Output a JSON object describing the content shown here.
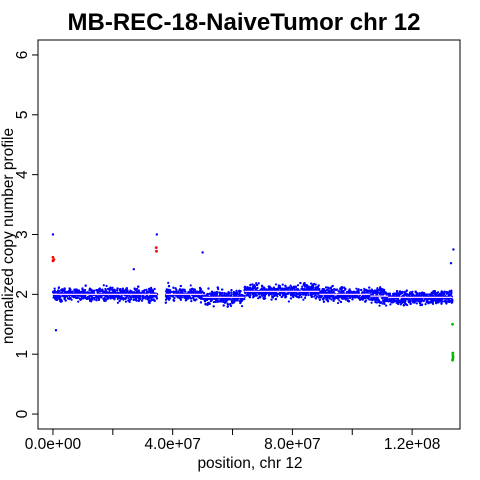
{
  "chart_data": {
    "type": "scatter",
    "title": "MB-REC-18-NaiveTumor chr 12",
    "xlabel": "position, chr 12",
    "ylabel": "normalized copy number profile",
    "xlim": [
      -5000000,
      136000000
    ],
    "ylim": [
      -0.25,
      6.25
    ],
    "x_ticks": [
      0,
      40000000,
      80000000,
      120000000
    ],
    "x_tick_labels": [
      "0.0e+00",
      "4.0e+07",
      "8.0e+07",
      "1.2e+08"
    ],
    "x_minor_ticks": [
      20000000,
      60000000,
      100000000
    ],
    "y_ticks": [
      0,
      1,
      2,
      3,
      4,
      5,
      6
    ],
    "y_tick_labels": [
      "0",
      "1",
      "2",
      "3",
      "4",
      "5",
      "6"
    ],
    "grid": false,
    "colors": {
      "normal": "#0000ff",
      "gain": "#ff0000",
      "loss": "#00bb00",
      "segment": "#ffd0ff"
    },
    "gap": [
      35000000,
      37500000
    ],
    "segments": [
      {
        "x_start": 0,
        "x_end": 34800000,
        "y": 2.0
      },
      {
        "x_start": 37700000,
        "x_end": 50000000,
        "y": 2.0
      },
      {
        "x_start": 50000000,
        "x_end": 64000000,
        "y": 1.95
      },
      {
        "x_start": 64000000,
        "x_end": 89000000,
        "y": 2.05
      },
      {
        "x_start": 89000000,
        "x_end": 106000000,
        "y": 2.0
      },
      {
        "x_start": 106000000,
        "x_end": 112000000,
        "y": 1.97
      },
      {
        "x_start": 112000000,
        "x_end": 133500000,
        "y": 1.95
      }
    ],
    "gain_points": [
      {
        "x": 0,
        "y": 2.62
      },
      {
        "x": 0,
        "y": 2.56
      },
      {
        "x": 300000,
        "y": 2.58
      },
      {
        "x": 34500000,
        "y": 2.78
      },
      {
        "x": 34600000,
        "y": 2.72
      }
    ],
    "loss_points": [
      {
        "x": 133500000,
        "y": 1.5
      },
      {
        "x": 133600000,
        "y": 1.02
      },
      {
        "x": 133600000,
        "y": 0.98
      },
      {
        "x": 133700000,
        "y": 0.95
      },
      {
        "x": 133600000,
        "y": 0.92
      },
      {
        "x": 133500000,
        "y": 0.9
      }
    ],
    "outlier_points": [
      {
        "x": 0,
        "y": 3.0
      },
      {
        "x": 34700000,
        "y": 3.0
      },
      {
        "x": 133800000,
        "y": 2.75
      },
      {
        "x": 1000000,
        "y": 1.4
      },
      {
        "x": 27000000,
        "y": 2.42
      },
      {
        "x": 50000000,
        "y": 2.7
      },
      {
        "x": 133000000,
        "y": 2.52
      }
    ]
  }
}
